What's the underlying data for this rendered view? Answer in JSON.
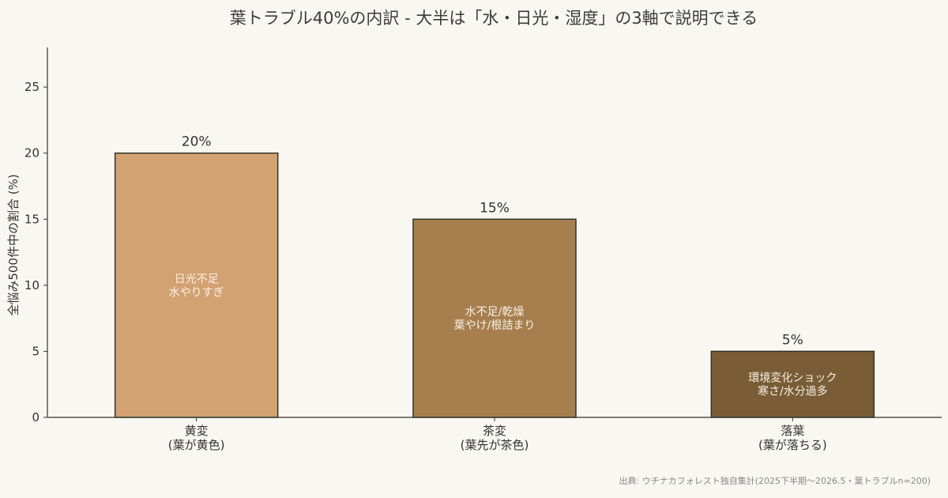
{
  "chart_data": {
    "type": "bar",
    "title": "葉トラブル40%の内訳 - 大半は「水・日光・湿度」の3軸で説明できる",
    "ylabel": "全悩み500件中の割合 (%)",
    "xlabel": "",
    "ylim": [
      0,
      28
    ],
    "yticks": [
      0,
      5,
      10,
      15,
      20,
      25
    ],
    "categories": [
      [
        "黄変",
        "(葉が黄色)"
      ],
      [
        "茶変",
        "(葉先が茶色)"
      ],
      [
        "落葉",
        "(葉が落ちる)"
      ]
    ],
    "values": [
      20,
      15,
      5
    ],
    "value_labels": [
      "20%",
      "15%",
      "5%"
    ],
    "bar_texts": [
      [
        "日光不足",
        "水やりすぎ"
      ],
      [
        "水不足/乾燥",
        "葉やけ/根詰まり"
      ],
      [
        "環境変化ショック",
        "寒さ/水分過多"
      ]
    ],
    "colors": [
      "#d3a273",
      "#a77f4f",
      "#7a5c36"
    ],
    "edge_color": "#2f3528",
    "grid": false,
    "source": "出典: ウチナカフォレスト独自集計(2025下半期〜2026.5・葉トラブルn=200)"
  }
}
